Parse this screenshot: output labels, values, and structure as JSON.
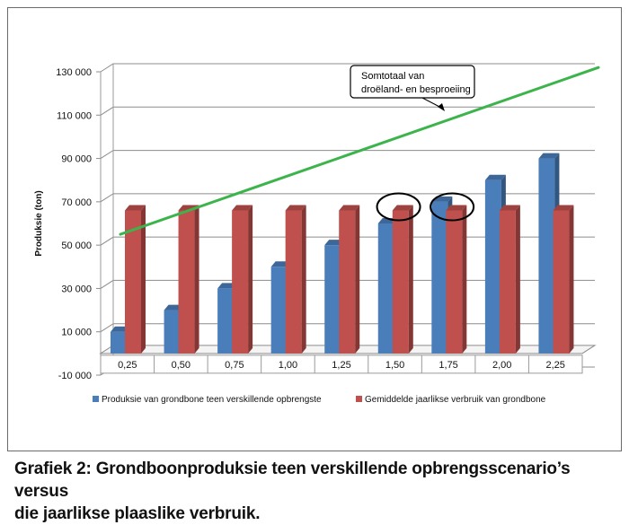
{
  "chart_data": {
    "type": "bar",
    "ylabel": "Produksie (ton)",
    "categories": [
      "0,25",
      "0,50",
      "0,75",
      "1,00",
      "1,25",
      "1,50",
      "1,75",
      "2,00",
      "2,25"
    ],
    "series": [
      {
        "name": "Produksie van grondbone teen verskillende opbrengste",
        "color": "#4a7ebb",
        "values": [
          10000,
          20000,
          30000,
          40000,
          50000,
          60000,
          70000,
          80000,
          90000
        ]
      },
      {
        "name": "Gemiddelde jaarlikse verbruik van grondbone",
        "color": "#c0504d",
        "values": [
          66000,
          66000,
          66000,
          66000,
          66000,
          66000,
          66000,
          66000,
          66000
        ]
      }
    ],
    "total_line": {
      "color": "#3cb44b",
      "start": 55000,
      "end": 132000
    },
    "yticks": [
      -10000,
      10000,
      30000,
      50000,
      70000,
      90000,
      110000,
      130000
    ],
    "ytick_labels": [
      "-10 000",
      "10 000",
      "30 000",
      "50 000",
      "70 000",
      "90 000",
      "110 000",
      "130 000"
    ],
    "ylim": [
      -10000,
      130000
    ],
    "annotation": {
      "line1": "Somtotaal van",
      "line2": "droëland- en besproeiing"
    },
    "highlighted_categories": [
      "1,50",
      "1,75"
    ],
    "grid": true,
    "legend_position": "bottom"
  },
  "caption": {
    "line1": "Grafiek 2: Grondboonproduksie teen verskillende opbrengsscenario’s versus",
    "line2": "die jaarlikse plaaslike verbruik."
  }
}
